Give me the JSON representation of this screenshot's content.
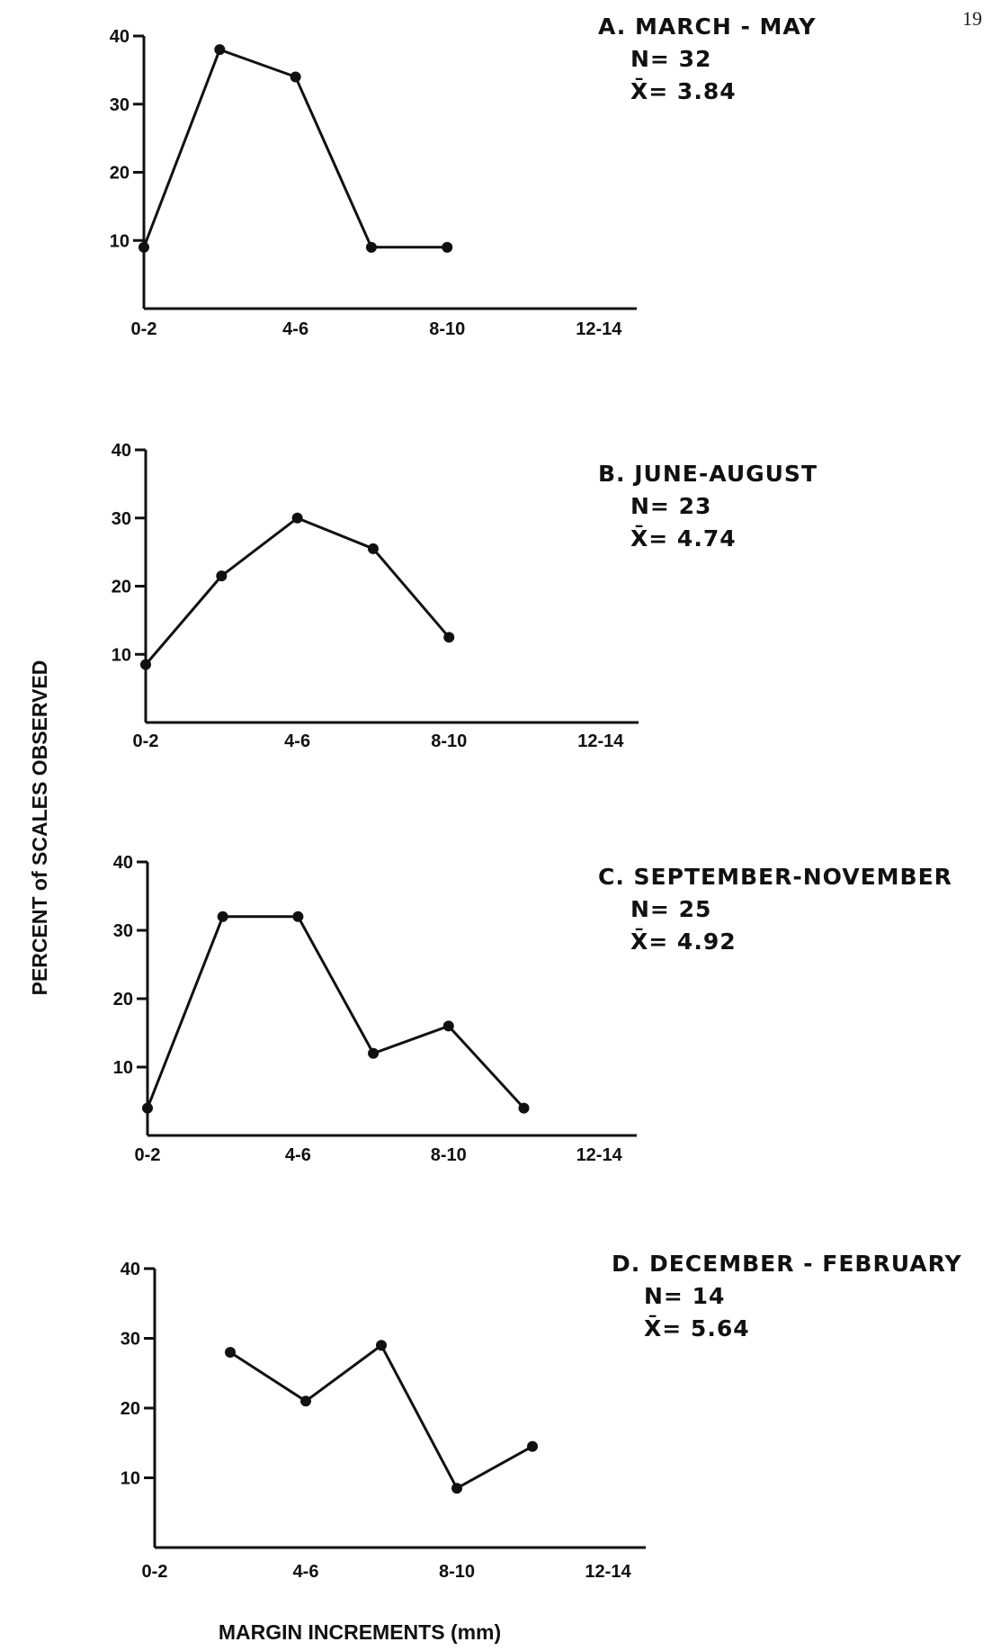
{
  "page_number": "19",
  "ylabel": "PERCENT of SCALES OBSERVED",
  "xlabel": "MARGIN INCREMENTS (mm)",
  "chart_data": [
    {
      "type": "line",
      "panel": "A. MARCH - MAY",
      "n_label": "N= 32",
      "mean_label": "X̄= 3.84",
      "x_tick_labels": [
        "0-2",
        "4-6",
        "8-10",
        "12-14"
      ],
      "y_ticks": [
        10,
        20,
        30,
        40
      ],
      "ylim": [
        0,
        40
      ],
      "x_domain": [
        1,
        14
      ],
      "x": [
        1,
        3,
        5,
        7,
        9
      ],
      "values": [
        9,
        38,
        34,
        9,
        9
      ]
    },
    {
      "type": "line",
      "panel": "B. JUNE-AUGUST",
      "n_label": "N= 23",
      "mean_label": "X̄= 4.74",
      "x_tick_labels": [
        "0-2",
        "4-6",
        "8-10",
        "12-14"
      ],
      "y_ticks": [
        10,
        20,
        30,
        40
      ],
      "ylim": [
        0,
        40
      ],
      "x_domain": [
        1,
        14
      ],
      "x": [
        1,
        3,
        5,
        7,
        9
      ],
      "values": [
        8.5,
        21.5,
        30,
        25.5,
        12.5
      ]
    },
    {
      "type": "line",
      "panel": "C. SEPTEMBER-NOVEMBER",
      "n_label": "N= 25",
      "mean_label": "X̄= 4.92",
      "x_tick_labels": [
        "0-2",
        "4-6",
        "8-10",
        "12-14"
      ],
      "y_ticks": [
        10,
        20,
        30,
        40
      ],
      "ylim": [
        0,
        40
      ],
      "x_domain": [
        1,
        14
      ],
      "x": [
        1,
        3,
        5,
        7,
        9,
        11
      ],
      "values": [
        4,
        32,
        32,
        12,
        16,
        4
      ]
    },
    {
      "type": "line",
      "panel": "D. DECEMBER - FEBRUARY",
      "n_label": "N= 14",
      "mean_label": "X̄= 5.64",
      "x_tick_labels": [
        "0-2",
        "4-6",
        "8-10",
        "12-14"
      ],
      "y_ticks": [
        10,
        20,
        30,
        40
      ],
      "ylim": [
        0,
        40
      ],
      "x_domain": [
        1,
        14
      ],
      "x": [
        3,
        5,
        7,
        9,
        11
      ],
      "values": [
        28,
        21,
        29,
        8.5,
        14.5
      ]
    }
  ]
}
